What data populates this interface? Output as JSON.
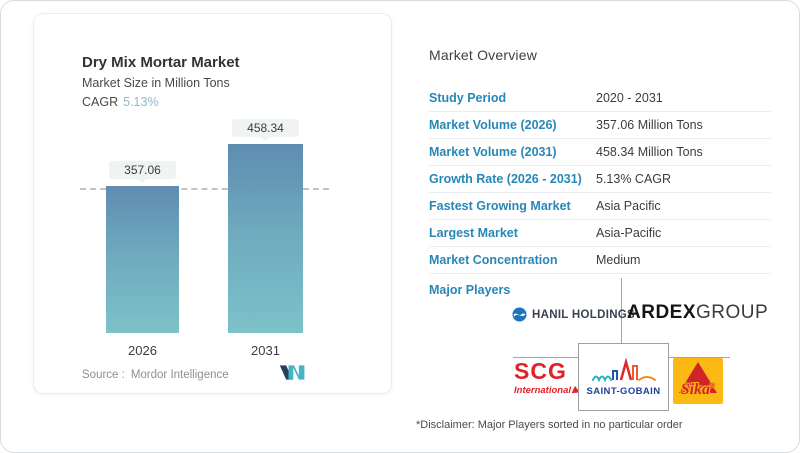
{
  "chart_card": {
    "title": "Dry Mix Mortar Market",
    "subtitle": "Market Size in Million Tons",
    "cagr_label": "CAGR",
    "cagr_value": "5.13%",
    "source_label": "Source :",
    "source_value": "Mordor Intelligence"
  },
  "chart_data": {
    "type": "bar",
    "title": "Dry Mix Mortar Market",
    "ylabel": "Market Size in Million Tons",
    "unit": "Million Tons",
    "categories": [
      "2026",
      "2031"
    ],
    "values": [
      357.06,
      458.34
    ],
    "cagr_percent": 5.13,
    "reference_line": {
      "value": 357.06,
      "style": "dashed"
    },
    "bar_gradient": [
      "#5e8cb1",
      "#7cc2ca"
    ],
    "grid": false,
    "legend": false
  },
  "overview": {
    "heading": "Market Overview",
    "label_color": "#2787b8",
    "rows": [
      {
        "label": "Study Period",
        "value": "2020 - 2031"
      },
      {
        "label": "Market Volume (2026)",
        "value": "357.06 Million Tons"
      },
      {
        "label": "Market Volume (2031)",
        "value": "458.34 Million Tons"
      },
      {
        "label": "Growth Rate (2026 - 2031)",
        "value": "5.13% CAGR"
      },
      {
        "label": "Fastest Growing Market",
        "value": "Asia Pacific"
      },
      {
        "label": "Largest Market",
        "value": "Asia-Pacific"
      },
      {
        "label": "Market Concentration",
        "value": "Medium"
      }
    ],
    "major_players_label": "Major Players",
    "disclaimer": "*Disclaimer: Major Players sorted in no particular order"
  },
  "logos": {
    "hanil": {
      "text": "HANIL HOLDINGS"
    },
    "ardex": {
      "bold": "ARDEX",
      "light": "GROUP"
    },
    "scg": {
      "text": "SCG",
      "sub": "International"
    },
    "saint_gobain": {
      "text": "SAINT-GOBAIN"
    },
    "sika": {
      "text": "Sika",
      "reg": "®"
    }
  }
}
